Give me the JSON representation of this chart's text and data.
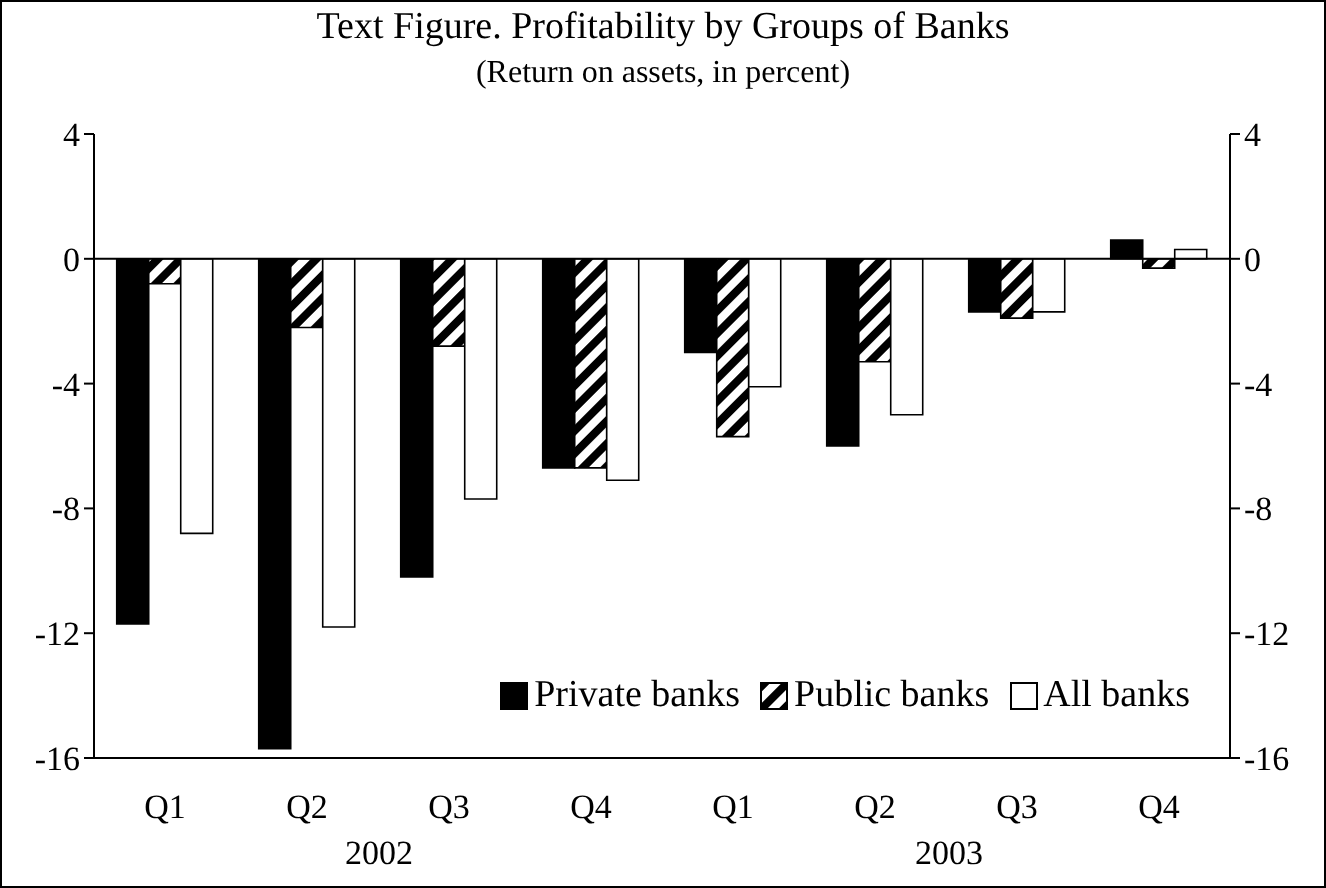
{
  "chart_data": {
    "type": "bar",
    "title": "Text Figure. Profitability by Groups of Banks",
    "subtitle": "(Return on assets, in percent)",
    "categories": [
      "Q1",
      "Q2",
      "Q3",
      "Q4",
      "Q1",
      "Q2",
      "Q3",
      "Q4"
    ],
    "annotations": [
      "2002",
      "2003"
    ],
    "series": [
      {
        "name": "Private banks",
        "color": "#000000",
        "values": [
          -11.7,
          -15.7,
          -10.2,
          -6.7,
          -3.0,
          -6.0,
          -1.7,
          0.6
        ]
      },
      {
        "name": "Public banks",
        "color": "#000000",
        "values": [
          -0.8,
          -2.2,
          -2.8,
          -6.7,
          -5.7,
          -3.3,
          -1.9,
          -0.3
        ]
      },
      {
        "name": "All banks",
        "color": "#ffffff",
        "values": [
          -8.8,
          -11.8,
          -7.7,
          -7.1,
          -4.1,
          -5.0,
          -1.7,
          0.3
        ]
      }
    ],
    "ylim": [
      -16,
      4
    ],
    "yticks": [
      -16,
      -12,
      -8,
      -4,
      0,
      4
    ],
    "y2lim": [
      -16,
      4
    ],
    "y2ticks": [
      -16,
      -12,
      -8,
      -4,
      0,
      4
    ],
    "grid": false,
    "ref_lines": [
      {
        "axis": "y",
        "value": 0
      }
    ],
    "legend": "bottom right"
  }
}
